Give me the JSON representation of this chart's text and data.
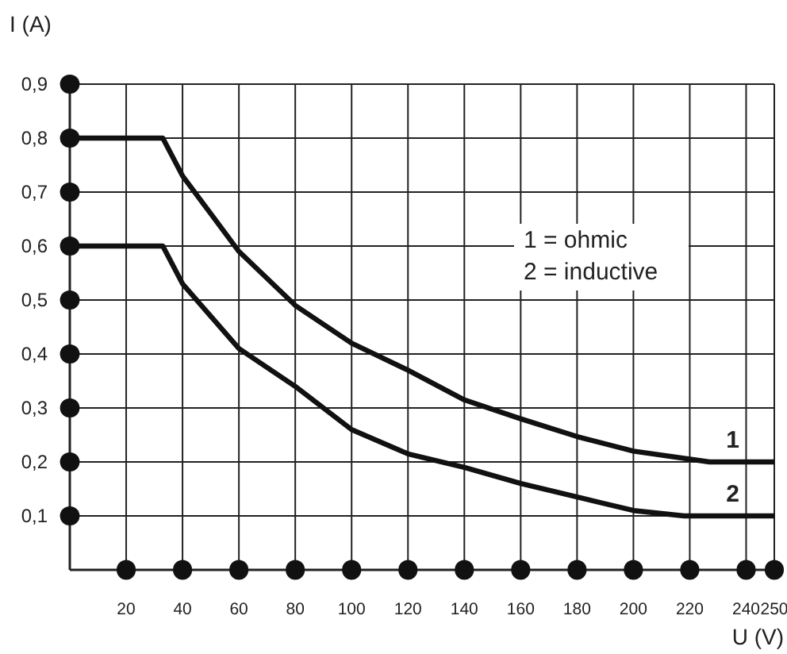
{
  "chart_data": {
    "type": "line",
    "xlabel": "U (V)",
    "ylabel": "I (A)",
    "xlim": [
      0,
      250
    ],
    "xticks": [
      20,
      40,
      60,
      80,
      100,
      120,
      140,
      160,
      180,
      200,
      220,
      240,
      250
    ],
    "ylim": [
      0,
      0.9
    ],
    "yticks": [
      {
        "value": 0.1,
        "label": "0,1"
      },
      {
        "value": 0.2,
        "label": "0,2"
      },
      {
        "value": 0.3,
        "label": "0,3"
      },
      {
        "value": 0.4,
        "label": "0,4"
      },
      {
        "value": 0.5,
        "label": "0,5"
      },
      {
        "value": 0.6,
        "label": "0,6"
      },
      {
        "value": 0.7,
        "label": "0,7"
      },
      {
        "value": 0.8,
        "label": "0,8"
      },
      {
        "value": 0.9,
        "label": "0,9"
      }
    ],
    "grid": true,
    "marker": "none",
    "line_style": "solid",
    "legend": false,
    "annotations": [
      "1 = ohmic",
      "2 = inductive"
    ],
    "series": [
      {
        "name": "1",
        "color": "#111111",
        "x": [
          0,
          33,
          40,
          50,
          60,
          80,
          100,
          120,
          140,
          160,
          180,
          200,
          227,
          250
        ],
        "values": [
          0.8,
          0.8,
          0.73,
          0.66,
          0.59,
          0.49,
          0.42,
          0.37,
          0.315,
          0.28,
          0.247,
          0.22,
          0.2,
          0.2
        ]
      },
      {
        "name": "2",
        "color": "#111111",
        "x": [
          0,
          33,
          40,
          50,
          60,
          80,
          100,
          120,
          140,
          160,
          180,
          200,
          218,
          250
        ],
        "values": [
          0.6,
          0.6,
          0.53,
          0.47,
          0.41,
          0.34,
          0.26,
          0.215,
          0.19,
          0.16,
          0.135,
          0.11,
          0.1,
          0.1
        ]
      }
    ]
  }
}
